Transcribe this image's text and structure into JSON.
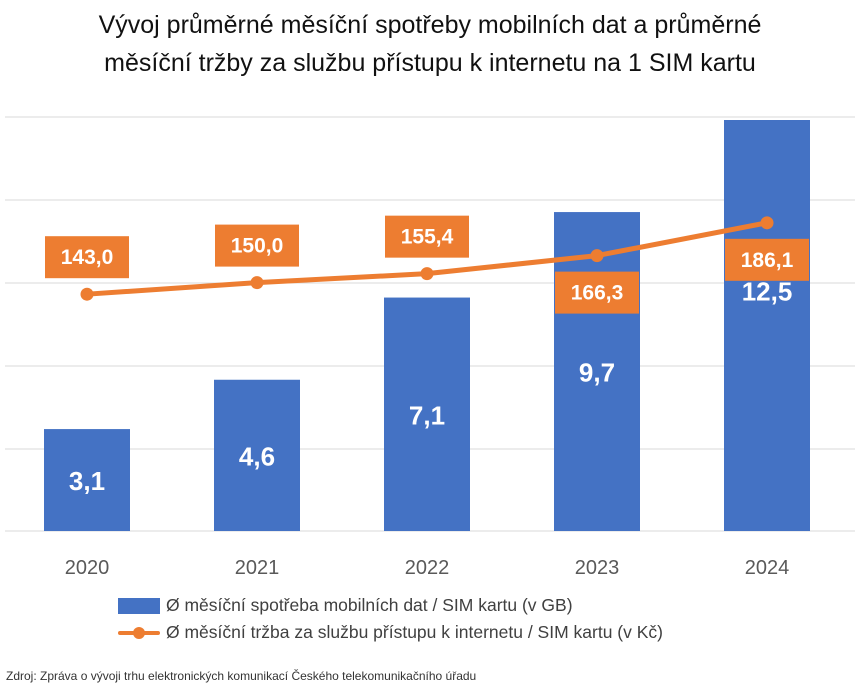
{
  "title_lines": [
    "Vývoj průměrné měsíční spotřeby mobilních dat a průměrné",
    "měsíční tržby za službu přístupu k internetu na 1 SIM kartu"
  ],
  "source": "Zdroj: Zpráva o vývoji trhu elektronických komunikací Českého telekomunikačního úřadu",
  "colors": {
    "bar": "#4472C4",
    "line": "#ED7D31",
    "grid": "#D9D9D9"
  },
  "chart_data": {
    "type": "bar",
    "categories": [
      "2020",
      "2021",
      "2022",
      "2023",
      "2024"
    ],
    "series": [
      {
        "name": "Ø měsíční spotřeba mobilních dat / SIM kartu (v GB)",
        "type": "bar",
        "values": [
          3.1,
          4.6,
          7.1,
          9.7,
          12.5
        ],
        "labels": [
          "3,1",
          "4,6",
          "7,1",
          "9,7",
          "12,5"
        ]
      },
      {
        "name": "Ø měsíční tržba za službu přístupu k internetu / SIM kartu (v Kč)",
        "type": "line",
        "values": [
          143.0,
          150.0,
          155.4,
          166.3,
          186.1
        ],
        "labels": [
          "143,0",
          "150,0",
          "155,4",
          "166,3",
          "186,1"
        ]
      }
    ],
    "bar_ylim": [
      0,
      12.5
    ],
    "line_ylim": [
      0,
      250
    ],
    "grid": true,
    "legend_position": "bottom"
  }
}
